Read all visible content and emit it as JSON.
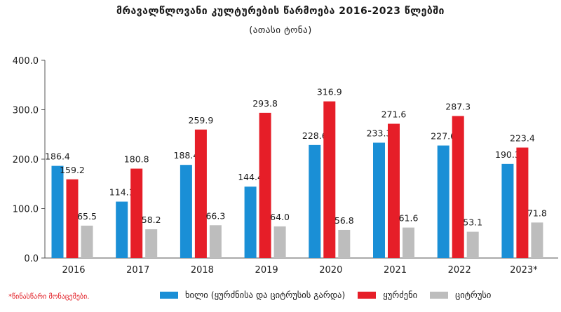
{
  "title": "მრავალწლოვანი კულტურების წარმოება 2016-2023 წლებში",
  "subtitle": "(ათასი ტონა)",
  "footnote": "*წინასწარი მონაცემები.",
  "colors": {
    "series_0": "#1a8fd6",
    "series_1": "#e61e28",
    "series_2": "#bdbdbd"
  },
  "chart_data": {
    "type": "bar",
    "categories": [
      "2016",
      "2017",
      "2018",
      "2019",
      "2020",
      "2021",
      "2022",
      "2023*"
    ],
    "series": [
      {
        "name": "ხილი (ყურძნისა და ციტრუსის გარდა)",
        "values": [
          186.4,
          114.1,
          188.4,
          144.4,
          228.6,
          233.3,
          227.6,
          190.3
        ]
      },
      {
        "name": "ყურძენი",
        "values": [
          159.2,
          180.8,
          259.9,
          293.8,
          316.9,
          271.6,
          287.3,
          223.4
        ]
      },
      {
        "name": "ციტრუსი",
        "values": [
          65.5,
          58.2,
          66.3,
          64.0,
          56.8,
          61.6,
          53.1,
          71.8
        ]
      }
    ],
    "yticks": [
      "0.0",
      "100.0",
      "200.0",
      "300.0",
      "400.0"
    ],
    "ylim": [
      0,
      400
    ],
    "grid": false,
    "legend": "bottom"
  }
}
